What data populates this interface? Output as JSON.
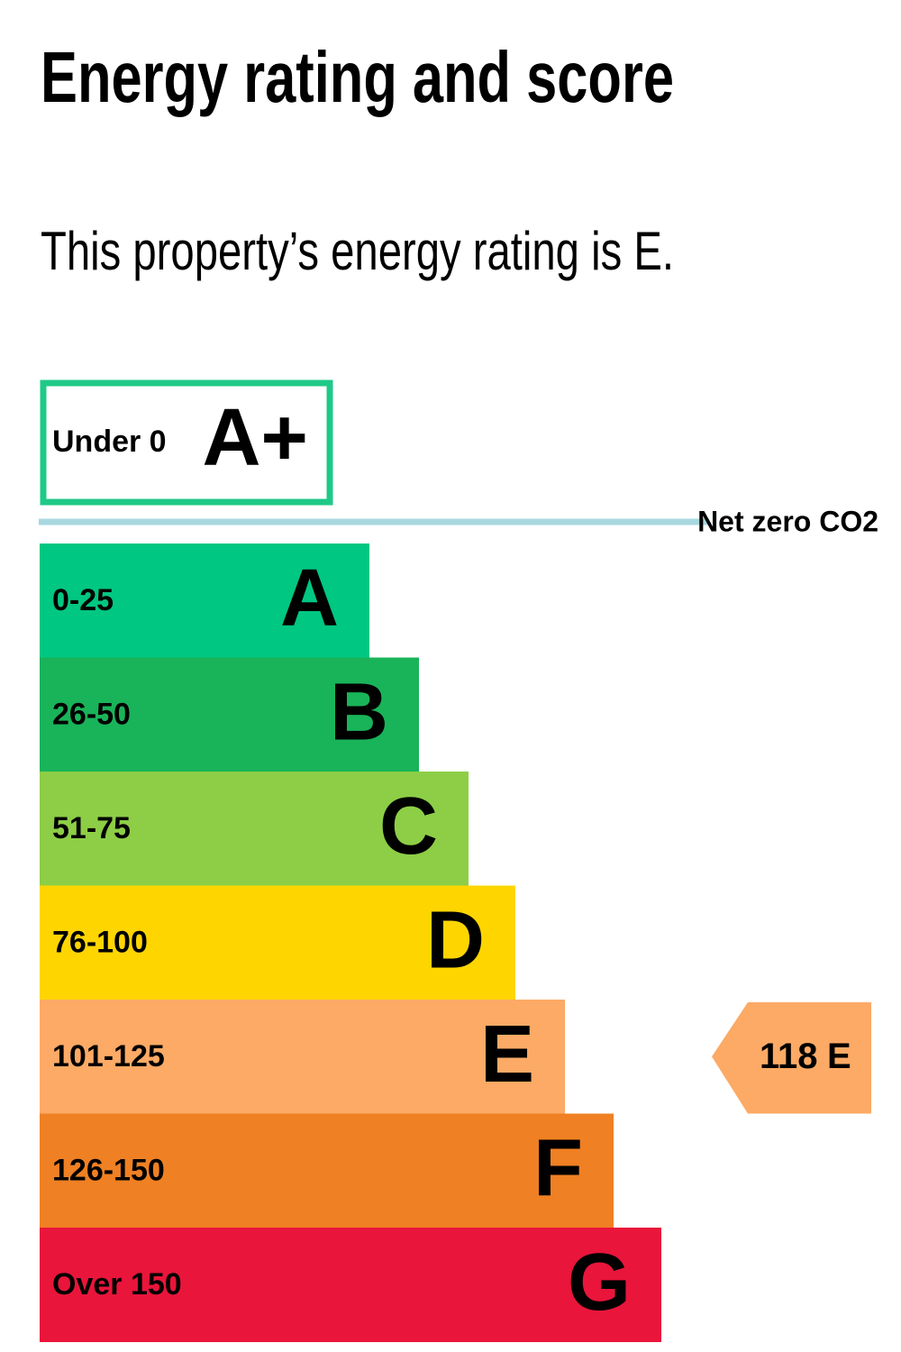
{
  "title": "Energy rating and score",
  "subtitle": "This property’s energy rating is E.",
  "top_band": {
    "range": "Under 0",
    "letter": "A+",
    "color": "#1fc987"
  },
  "net_zero": {
    "label": "Net zero CO2",
    "color": "#a8d8e0"
  },
  "bands": [
    {
      "range": "0-25",
      "letter": "A",
      "color": "#00c781"
    },
    {
      "range": "26-50",
      "letter": "B",
      "color": "#19b459"
    },
    {
      "range": "51-75",
      "letter": "C",
      "color": "#8dce46"
    },
    {
      "range": "76-100",
      "letter": "D",
      "color": "#ffd500"
    },
    {
      "range": "101-125",
      "letter": "E",
      "color": "#fcaa65"
    },
    {
      "range": "126-150",
      "letter": "F",
      "color": "#ef8023"
    },
    {
      "range": "Over 150",
      "letter": "G",
      "color": "#e9153b"
    }
  ],
  "current": {
    "score": 118,
    "letter": "E"
  }
}
